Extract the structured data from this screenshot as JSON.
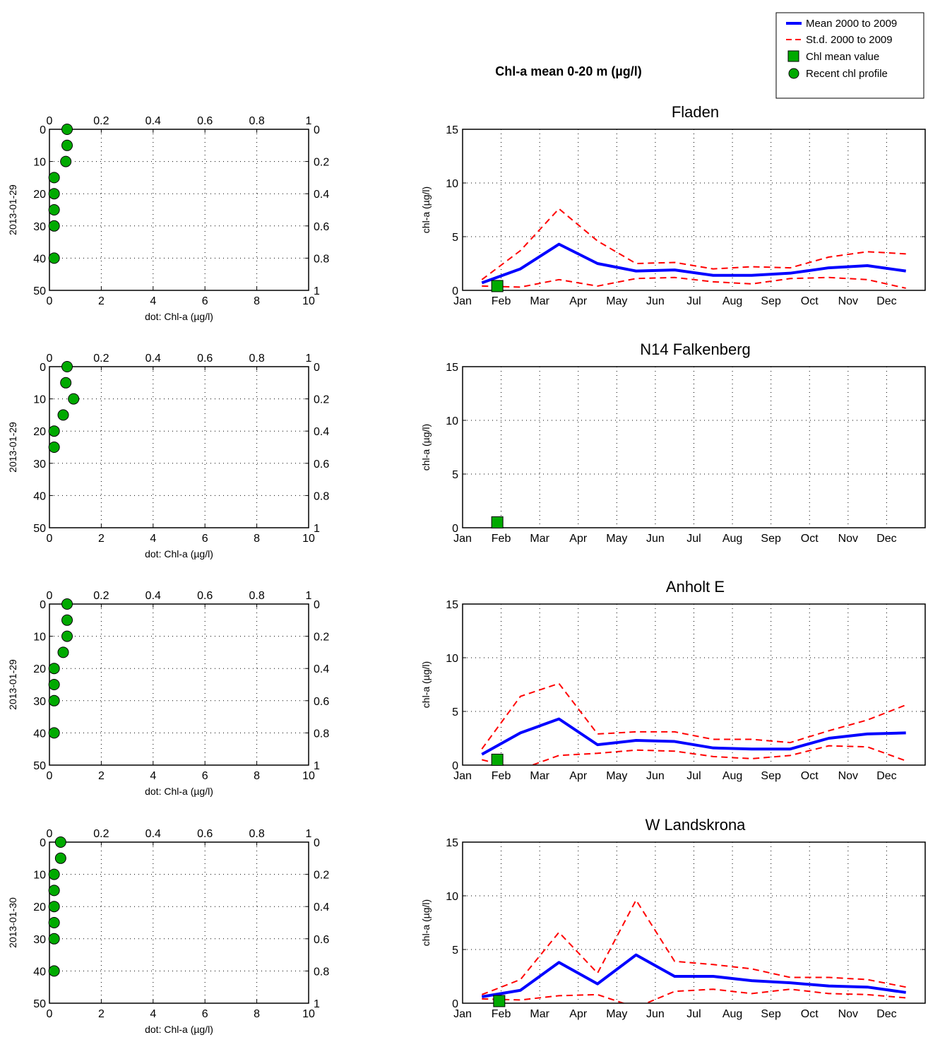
{
  "main_title": "Chl-a mean 0-20 m (µg/l)",
  "legend": {
    "placement": "top-right",
    "items": [
      {
        "label": "Mean 2000 to 2009",
        "color": "#0000ff",
        "style": "solid-line"
      },
      {
        "label": "St.d. 2000 to 2009",
        "color": "#ff0000",
        "style": "dashed-line"
      },
      {
        "label": "Chl mean value",
        "color": "#00aa00",
        "style": "square-marker"
      },
      {
        "label": "Recent chl profile",
        "color": "#00aa00",
        "style": "circle-marker"
      }
    ]
  },
  "chart_data": [
    {
      "type": "scatter",
      "kind": "profile",
      "ylabel": "2013-01-29",
      "xlabel": "dot: Chl-a (µg/l)",
      "xlim": [
        0,
        10
      ],
      "ylim": [
        50,
        0
      ],
      "x_ticks": [
        "0",
        "2",
        "4",
        "6",
        "8",
        "10"
      ],
      "y_ticks": [
        "0",
        "10",
        "20",
        "30",
        "40",
        "50"
      ],
      "top_ticks": [
        "0",
        "0.2",
        "0.4",
        "0.6",
        "0.8",
        "1"
      ],
      "right_ticks": [
        "0",
        "0.2",
        "0.4",
        "0.6",
        "0.8",
        "1"
      ],
      "grid": true,
      "points": [
        {
          "chl": 0.6,
          "depth": 0
        },
        {
          "chl": 0.6,
          "depth": 5
        },
        {
          "chl": 0.55,
          "depth": 10
        },
        {
          "chl": 0.1,
          "depth": 15
        },
        {
          "chl": 0.1,
          "depth": 20
        },
        {
          "chl": 0.1,
          "depth": 25
        },
        {
          "chl": 0.1,
          "depth": 30
        },
        {
          "chl": 0.1,
          "depth": 40
        }
      ]
    },
    {
      "type": "line",
      "kind": "season",
      "title": "Fladen",
      "ylabel": "chl-a (µg/l)",
      "ylim": [
        0,
        15
      ],
      "y_ticks": [
        "0",
        "5",
        "10",
        "15"
      ],
      "grid": true,
      "categories": [
        "Jan",
        "Feb",
        "Mar",
        "Apr",
        "May",
        "Jun",
        "Jul",
        "Aug",
        "Sep",
        "Oct",
        "Nov",
        "Dec"
      ],
      "series": [
        {
          "name": "Mean 2000 to 2009",
          "x": [
            0.5,
            1.5,
            2.5,
            3.5,
            4.5,
            5.5,
            6.5,
            7.5,
            8.5,
            9.5,
            10.5,
            11.5
          ],
          "values": [
            0.7,
            2.0,
            4.3,
            2.5,
            1.8,
            1.9,
            1.4,
            1.4,
            1.6,
            2.1,
            2.3,
            1.8
          ]
        },
        {
          "name": "St.d. 2000 to 2009",
          "x": [
            0.5,
            1.5,
            2.5,
            3.5,
            4.5,
            5.5,
            6.5,
            7.5,
            8.5,
            9.5,
            10.5,
            11.5
          ],
          "values": [
            1.0,
            3.7,
            7.6,
            4.6,
            2.5,
            2.6,
            2.0,
            2.2,
            2.1,
            3.1,
            3.6,
            3.4
          ]
        },
        {
          "name": "St.d. 2000 to 2009",
          "x": [
            0.5,
            1.5,
            2.5,
            3.5,
            4.5,
            5.5,
            6.5,
            7.5,
            8.5,
            9.5,
            10.5,
            11.5
          ],
          "values": [
            0.4,
            0.3,
            1.0,
            0.4,
            1.1,
            1.2,
            0.8,
            0.6,
            1.1,
            1.2,
            1.0,
            0.2
          ]
        }
      ],
      "chl_mean": {
        "x": 0.9,
        "value": 0.4
      }
    },
    {
      "type": "scatter",
      "kind": "profile",
      "ylabel": "2013-01-29",
      "xlabel": "dot: Chl-a (µg/l)",
      "xlim": [
        0,
        10
      ],
      "ylim": [
        50,
        0
      ],
      "x_ticks": [
        "0",
        "2",
        "4",
        "6",
        "8",
        "10"
      ],
      "y_ticks": [
        "0",
        "10",
        "20",
        "30",
        "40",
        "50"
      ],
      "top_ticks": [
        "0",
        "0.2",
        "0.4",
        "0.6",
        "0.8",
        "1"
      ],
      "right_ticks": [
        "0",
        "0.2",
        "0.4",
        "0.6",
        "0.8",
        "1"
      ],
      "grid": true,
      "points": [
        {
          "chl": 0.6,
          "depth": 0
        },
        {
          "chl": 0.55,
          "depth": 5
        },
        {
          "chl": 0.85,
          "depth": 10
        },
        {
          "chl": 0.45,
          "depth": 15
        },
        {
          "chl": 0.1,
          "depth": 20
        },
        {
          "chl": 0.1,
          "depth": 25
        }
      ]
    },
    {
      "type": "line",
      "kind": "season",
      "title": "N14 Falkenberg",
      "ylabel": "chl-a (µg/l)",
      "ylim": [
        0,
        15
      ],
      "y_ticks": [
        "0",
        "5",
        "10",
        "15"
      ],
      "grid": true,
      "categories": [
        "Jan",
        "Feb",
        "Mar",
        "Apr",
        "May",
        "Jun",
        "Jul",
        "Aug",
        "Sep",
        "Oct",
        "Nov",
        "Dec"
      ],
      "series": [],
      "chl_mean": {
        "x": 0.9,
        "value": 0.5
      }
    },
    {
      "type": "scatter",
      "kind": "profile",
      "ylabel": "2013-01-29",
      "xlabel": "dot: Chl-a (µg/l)",
      "xlim": [
        0,
        10
      ],
      "ylim": [
        50,
        0
      ],
      "x_ticks": [
        "0",
        "2",
        "4",
        "6",
        "8",
        "10"
      ],
      "y_ticks": [
        "0",
        "10",
        "20",
        "30",
        "40",
        "50"
      ],
      "top_ticks": [
        "0",
        "0.2",
        "0.4",
        "0.6",
        "0.8",
        "1"
      ],
      "right_ticks": [
        "0",
        "0.2",
        "0.4",
        "0.6",
        "0.8",
        "1"
      ],
      "grid": true,
      "points": [
        {
          "chl": 0.6,
          "depth": 0
        },
        {
          "chl": 0.6,
          "depth": 5
        },
        {
          "chl": 0.6,
          "depth": 10
        },
        {
          "chl": 0.45,
          "depth": 15
        },
        {
          "chl": 0.1,
          "depth": 20
        },
        {
          "chl": 0.1,
          "depth": 25
        },
        {
          "chl": 0.1,
          "depth": 30
        },
        {
          "chl": 0.1,
          "depth": 40
        }
      ]
    },
    {
      "type": "line",
      "kind": "season",
      "title": "Anholt E",
      "ylabel": "chl-a (µg/l)",
      "ylim": [
        0,
        15
      ],
      "y_ticks": [
        "0",
        "5",
        "10",
        "15"
      ],
      "grid": true,
      "categories": [
        "Jan",
        "Feb",
        "Mar",
        "Apr",
        "May",
        "Jun",
        "Jul",
        "Aug",
        "Sep",
        "Oct",
        "Nov",
        "Dec"
      ],
      "series": [
        {
          "name": "Mean 2000 to 2009",
          "x": [
            0.5,
            1.5,
            2.5,
            3.5,
            4.5,
            5.5,
            6.5,
            7.5,
            8.5,
            9.5,
            10.5,
            11.5
          ],
          "values": [
            1.0,
            3.0,
            4.3,
            1.9,
            2.3,
            2.2,
            1.6,
            1.5,
            1.5,
            2.5,
            2.9,
            3.0
          ]
        },
        {
          "name": "St.d. 2000 to 2009",
          "x": [
            0.5,
            1.5,
            2.5,
            3.5,
            4.5,
            5.5,
            6.5,
            7.5,
            8.5,
            9.5,
            10.5,
            11.5
          ],
          "values": [
            1.5,
            6.4,
            7.6,
            2.9,
            3.1,
            3.1,
            2.4,
            2.4,
            2.1,
            3.2,
            4.2,
            5.6
          ]
        },
        {
          "name": "St.d. 2000 to 2009",
          "x": [
            0.5,
            1.5,
            2.5,
            3.5,
            4.5,
            5.5,
            6.5,
            7.5,
            8.5,
            9.5,
            10.5,
            11.5
          ],
          "values": [
            0.5,
            -0.4,
            0.9,
            1.1,
            1.4,
            1.3,
            0.8,
            0.6,
            0.9,
            1.8,
            1.7,
            0.4
          ]
        }
      ],
      "chl_mean": {
        "x": 0.9,
        "value": 0.5
      }
    },
    {
      "type": "scatter",
      "kind": "profile",
      "ylabel": "2013-01-30",
      "xlabel": "dot: Chl-a (µg/l)",
      "xlim": [
        0,
        10
      ],
      "ylim": [
        50,
        0
      ],
      "x_ticks": [
        "0",
        "2",
        "4",
        "6",
        "8",
        "10"
      ],
      "y_ticks": [
        "0",
        "10",
        "20",
        "30",
        "40",
        "50"
      ],
      "top_ticks": [
        "0",
        "0.2",
        "0.4",
        "0.6",
        "0.8",
        "1"
      ],
      "right_ticks": [
        "0",
        "0.2",
        "0.4",
        "0.6",
        "0.8",
        "1"
      ],
      "grid": true,
      "points": [
        {
          "chl": 0.35,
          "depth": 0
        },
        {
          "chl": 0.35,
          "depth": 5
        },
        {
          "chl": 0.1,
          "depth": 10
        },
        {
          "chl": 0.1,
          "depth": 15
        },
        {
          "chl": 0.1,
          "depth": 20
        },
        {
          "chl": 0.1,
          "depth": 25
        },
        {
          "chl": 0.1,
          "depth": 30
        },
        {
          "chl": 0.1,
          "depth": 40
        }
      ]
    },
    {
      "type": "line",
      "kind": "season",
      "title": "W Landskrona",
      "ylabel": "chl-a (µg/l)",
      "ylim": [
        0,
        15
      ],
      "y_ticks": [
        "0",
        "5",
        "10",
        "15"
      ],
      "grid": true,
      "categories": [
        "Jan",
        "Feb",
        "Mar",
        "Apr",
        "May",
        "Jun",
        "Jul",
        "Aug",
        "Sep",
        "Oct",
        "Nov",
        "Dec"
      ],
      "series": [
        {
          "name": "Mean 2000 to 2009",
          "x": [
            0.5,
            1.5,
            2.5,
            3.5,
            4.5,
            5.5,
            6.5,
            7.5,
            8.5,
            9.5,
            10.5,
            11.5
          ],
          "values": [
            0.6,
            1.2,
            3.8,
            1.8,
            4.5,
            2.5,
            2.5,
            2.1,
            1.9,
            1.6,
            1.5,
            1.0
          ]
        },
        {
          "name": "St.d. 2000 to 2009",
          "x": [
            0.5,
            1.5,
            2.5,
            3.5,
            4.5,
            5.5,
            6.5,
            7.5,
            8.5,
            9.5,
            10.5,
            11.5
          ],
          "values": [
            0.8,
            2.2,
            6.6,
            2.8,
            9.6,
            3.9,
            3.6,
            3.2,
            2.4,
            2.4,
            2.2,
            1.5
          ]
        },
        {
          "name": "St.d. 2000 to 2009",
          "x": [
            0.5,
            1.5,
            2.5,
            3.5,
            4.5,
            5.5,
            6.5,
            7.5,
            8.5,
            9.5,
            10.5,
            11.5
          ],
          "values": [
            0.4,
            0.3,
            0.7,
            0.8,
            -0.4,
            1.1,
            1.3,
            0.9,
            1.3,
            0.9,
            0.8,
            0.5
          ]
        }
      ],
      "chl_mean": {
        "x": 0.95,
        "value": 0.2
      }
    }
  ]
}
